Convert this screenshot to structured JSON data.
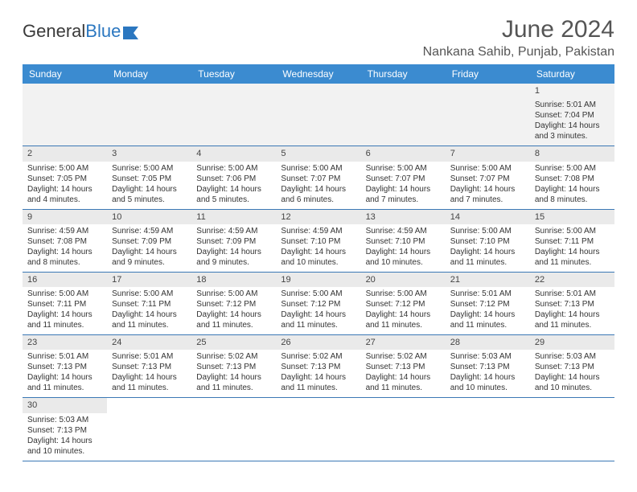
{
  "logo": {
    "part1": "General",
    "part2": "Blue"
  },
  "title": "June 2024",
  "location": "Nankana Sahib, Punjab, Pakistan",
  "weekdays": [
    "Sunday",
    "Monday",
    "Tuesday",
    "Wednesday",
    "Thursday",
    "Friday",
    "Saturday"
  ],
  "colors": {
    "header_bg": "#3b8bd0",
    "header_text": "#ffffff",
    "week_border": "#3b78b5",
    "daynum_bg": "#eaeaea"
  },
  "weeks": [
    [
      null,
      null,
      null,
      null,
      null,
      null,
      {
        "n": "1",
        "sr": "Sunrise: 5:01 AM",
        "ss": "Sunset: 7:04 PM",
        "dl": "Daylight: 14 hours and 3 minutes."
      }
    ],
    [
      {
        "n": "2",
        "sr": "Sunrise: 5:00 AM",
        "ss": "Sunset: 7:05 PM",
        "dl": "Daylight: 14 hours and 4 minutes."
      },
      {
        "n": "3",
        "sr": "Sunrise: 5:00 AM",
        "ss": "Sunset: 7:05 PM",
        "dl": "Daylight: 14 hours and 5 minutes."
      },
      {
        "n": "4",
        "sr": "Sunrise: 5:00 AM",
        "ss": "Sunset: 7:06 PM",
        "dl": "Daylight: 14 hours and 5 minutes."
      },
      {
        "n": "5",
        "sr": "Sunrise: 5:00 AM",
        "ss": "Sunset: 7:07 PM",
        "dl": "Daylight: 14 hours and 6 minutes."
      },
      {
        "n": "6",
        "sr": "Sunrise: 5:00 AM",
        "ss": "Sunset: 7:07 PM",
        "dl": "Daylight: 14 hours and 7 minutes."
      },
      {
        "n": "7",
        "sr": "Sunrise: 5:00 AM",
        "ss": "Sunset: 7:07 PM",
        "dl": "Daylight: 14 hours and 7 minutes."
      },
      {
        "n": "8",
        "sr": "Sunrise: 5:00 AM",
        "ss": "Sunset: 7:08 PM",
        "dl": "Daylight: 14 hours and 8 minutes."
      }
    ],
    [
      {
        "n": "9",
        "sr": "Sunrise: 4:59 AM",
        "ss": "Sunset: 7:08 PM",
        "dl": "Daylight: 14 hours and 8 minutes."
      },
      {
        "n": "10",
        "sr": "Sunrise: 4:59 AM",
        "ss": "Sunset: 7:09 PM",
        "dl": "Daylight: 14 hours and 9 minutes."
      },
      {
        "n": "11",
        "sr": "Sunrise: 4:59 AM",
        "ss": "Sunset: 7:09 PM",
        "dl": "Daylight: 14 hours and 9 minutes."
      },
      {
        "n": "12",
        "sr": "Sunrise: 4:59 AM",
        "ss": "Sunset: 7:10 PM",
        "dl": "Daylight: 14 hours and 10 minutes."
      },
      {
        "n": "13",
        "sr": "Sunrise: 4:59 AM",
        "ss": "Sunset: 7:10 PM",
        "dl": "Daylight: 14 hours and 10 minutes."
      },
      {
        "n": "14",
        "sr": "Sunrise: 5:00 AM",
        "ss": "Sunset: 7:10 PM",
        "dl": "Daylight: 14 hours and 11 minutes."
      },
      {
        "n": "15",
        "sr": "Sunrise: 5:00 AM",
        "ss": "Sunset: 7:11 PM",
        "dl": "Daylight: 14 hours and 11 minutes."
      }
    ],
    [
      {
        "n": "16",
        "sr": "Sunrise: 5:00 AM",
        "ss": "Sunset: 7:11 PM",
        "dl": "Daylight: 14 hours and 11 minutes."
      },
      {
        "n": "17",
        "sr": "Sunrise: 5:00 AM",
        "ss": "Sunset: 7:11 PM",
        "dl": "Daylight: 14 hours and 11 minutes."
      },
      {
        "n": "18",
        "sr": "Sunrise: 5:00 AM",
        "ss": "Sunset: 7:12 PM",
        "dl": "Daylight: 14 hours and 11 minutes."
      },
      {
        "n": "19",
        "sr": "Sunrise: 5:00 AM",
        "ss": "Sunset: 7:12 PM",
        "dl": "Daylight: 14 hours and 11 minutes."
      },
      {
        "n": "20",
        "sr": "Sunrise: 5:00 AM",
        "ss": "Sunset: 7:12 PM",
        "dl": "Daylight: 14 hours and 11 minutes."
      },
      {
        "n": "21",
        "sr": "Sunrise: 5:01 AM",
        "ss": "Sunset: 7:12 PM",
        "dl": "Daylight: 14 hours and 11 minutes."
      },
      {
        "n": "22",
        "sr": "Sunrise: 5:01 AM",
        "ss": "Sunset: 7:13 PM",
        "dl": "Daylight: 14 hours and 11 minutes."
      }
    ],
    [
      {
        "n": "23",
        "sr": "Sunrise: 5:01 AM",
        "ss": "Sunset: 7:13 PM",
        "dl": "Daylight: 14 hours and 11 minutes."
      },
      {
        "n": "24",
        "sr": "Sunrise: 5:01 AM",
        "ss": "Sunset: 7:13 PM",
        "dl": "Daylight: 14 hours and 11 minutes."
      },
      {
        "n": "25",
        "sr": "Sunrise: 5:02 AM",
        "ss": "Sunset: 7:13 PM",
        "dl": "Daylight: 14 hours and 11 minutes."
      },
      {
        "n": "26",
        "sr": "Sunrise: 5:02 AM",
        "ss": "Sunset: 7:13 PM",
        "dl": "Daylight: 14 hours and 11 minutes."
      },
      {
        "n": "27",
        "sr": "Sunrise: 5:02 AM",
        "ss": "Sunset: 7:13 PM",
        "dl": "Daylight: 14 hours and 11 minutes."
      },
      {
        "n": "28",
        "sr": "Sunrise: 5:03 AM",
        "ss": "Sunset: 7:13 PM",
        "dl": "Daylight: 14 hours and 10 minutes."
      },
      {
        "n": "29",
        "sr": "Sunrise: 5:03 AM",
        "ss": "Sunset: 7:13 PM",
        "dl": "Daylight: 14 hours and 10 minutes."
      }
    ],
    [
      {
        "n": "30",
        "sr": "Sunrise: 5:03 AM",
        "ss": "Sunset: 7:13 PM",
        "dl": "Daylight: 14 hours and 10 minutes."
      },
      null,
      null,
      null,
      null,
      null,
      null
    ]
  ]
}
